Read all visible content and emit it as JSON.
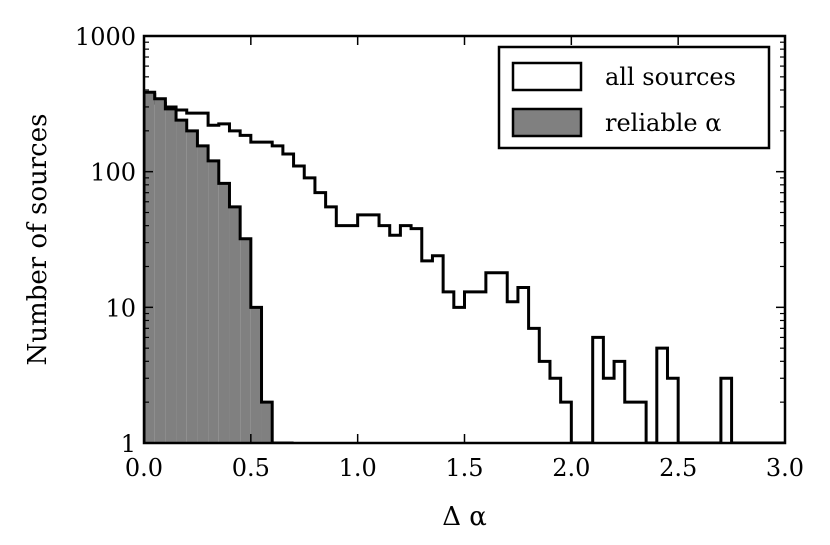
{
  "chart_data": {
    "type": "histogram",
    "xlabel": "Δ α",
    "ylabel": "Number of sources",
    "xlim": [
      0.0,
      3.0
    ],
    "ylim": [
      1,
      1000
    ],
    "yscale": "log",
    "grid": false,
    "legend_position": "top-right",
    "x_ticks": [
      0.0,
      0.5,
      1.0,
      1.5,
      2.0,
      2.5,
      3.0
    ],
    "x_tick_labels": [
      "0.0",
      "0.5",
      "1.0",
      "1.5",
      "2.0",
      "2.5",
      "3.0"
    ],
    "y_ticks": [
      1,
      10,
      100,
      1000
    ],
    "y_tick_labels": [
      "1",
      "10",
      "100",
      "1000"
    ],
    "bin_width": 0.05,
    "series": [
      {
        "name": "all sources",
        "style": "step-outline",
        "color": "#000000",
        "fill": "#ffffff",
        "bin_starts": [
          0.0,
          0.05,
          0.1,
          0.15,
          0.2,
          0.25,
          0.3,
          0.35,
          0.4,
          0.45,
          0.5,
          0.55,
          0.6,
          0.65,
          0.7,
          0.75,
          0.8,
          0.85,
          0.9,
          0.95,
          1.0,
          1.05,
          1.1,
          1.15,
          1.2,
          1.25,
          1.3,
          1.35,
          1.4,
          1.45,
          1.5,
          1.55,
          1.6,
          1.65,
          1.7,
          1.75,
          1.8,
          1.85,
          1.9,
          1.95,
          2.0,
          2.05,
          2.1,
          2.15,
          2.2,
          2.25,
          2.3,
          2.35,
          2.4,
          2.45,
          2.5,
          2.55,
          2.6,
          2.65,
          2.7,
          2.75,
          2.8,
          2.85,
          2.9,
          2.95
        ],
        "counts": [
          370,
          320,
          300,
          285,
          270,
          270,
          220,
          225,
          200,
          185,
          165,
          165,
          155,
          135,
          110,
          90,
          70,
          55,
          40,
          40,
          48,
          48,
          40,
          34,
          40,
          38,
          22,
          24,
          13,
          10,
          13,
          13,
          18,
          18,
          11,
          14,
          7,
          4,
          3,
          2,
          1,
          1,
          6,
          3,
          4,
          2,
          2,
          1,
          5,
          3,
          1,
          1,
          1,
          1,
          3,
          1,
          1,
          1,
          1,
          1
        ]
      },
      {
        "name": "reliable α",
        "style": "step-filled",
        "color": "#000000",
        "fill": "#808080",
        "bin_starts": [
          0.0,
          0.05,
          0.1,
          0.15,
          0.2,
          0.25,
          0.3,
          0.35,
          0.4,
          0.45,
          0.5,
          0.55,
          0.6,
          0.65
        ],
        "counts": [
          385,
          345,
          290,
          240,
          200,
          155,
          120,
          82,
          55,
          32,
          10,
          2,
          1,
          1
        ]
      }
    ]
  }
}
